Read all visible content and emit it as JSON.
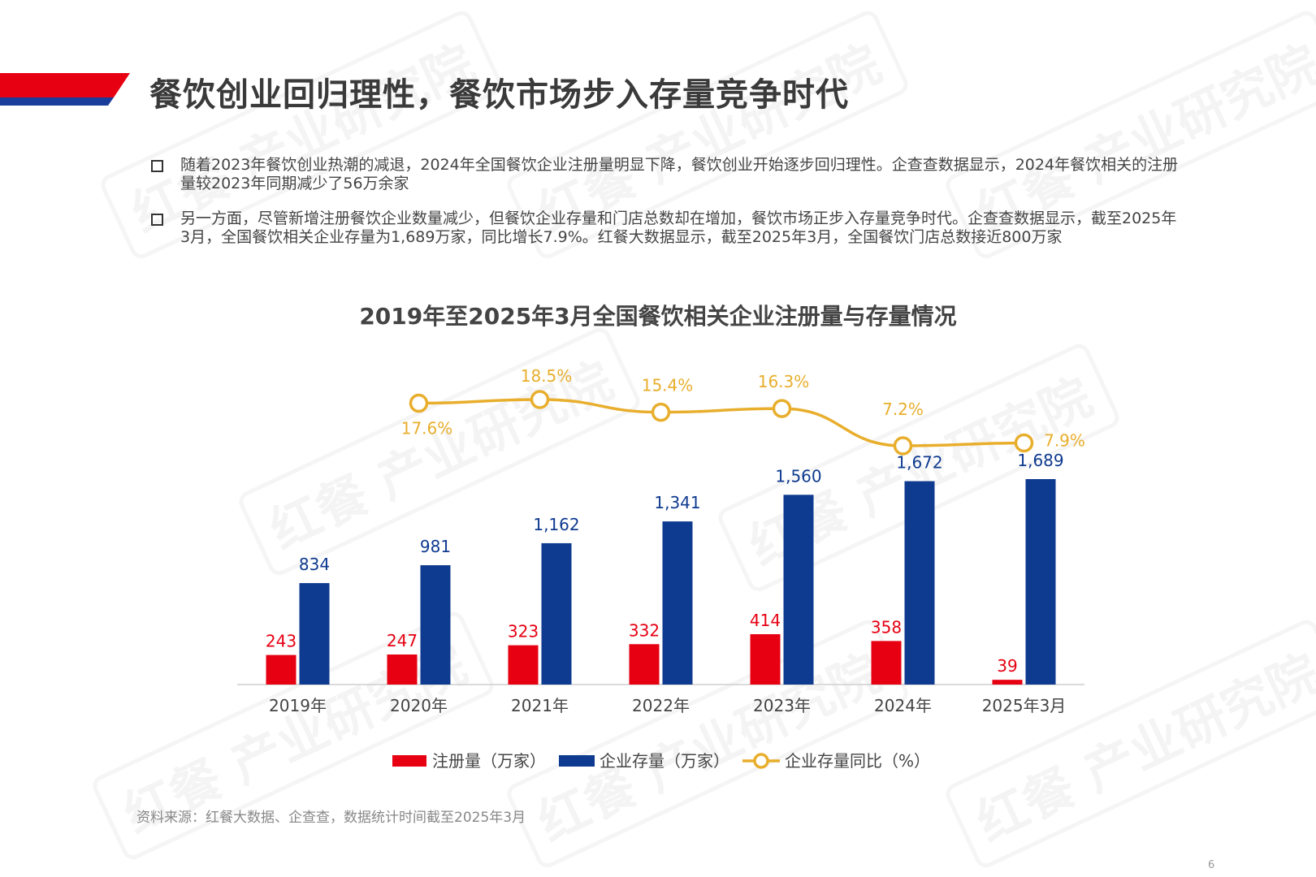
{
  "page": {
    "title": "餐饮创业回归理性，餐饮市场步入存量竞争时代",
    "bullets": [
      "随着2023年餐饮创业热潮的减退，2024年全国餐饮企业注册量明显下降，餐饮创业开始逐步回归理性。企查查数据显示，2024年餐饮相关的注册量较2023年同期减少了56万余家",
      "另一方面，尽管新增注册餐饮企业数量减少，但餐饮企业存量和门店总数却在增加，餐饮市场正步入存量竞争时代。企查查数据显示，截至2025年3月，全国餐饮相关企业存量为1,689万家，同比增长7.9%。红餐大数据显示，截至2025年3月，全国餐饮门店总数接近800万家"
    ],
    "source": "资料来源：红餐大数据、企查查，数据统计时间截至2025年3月",
    "page_number": "6",
    "watermark_text": "红餐 产业研究院",
    "colors": {
      "brand_red": "#E60012",
      "brand_blue": "#0E3A8F",
      "line_gold": "#E8AE2C"
    }
  },
  "chart_data": {
    "type": "bar",
    "title": "2019年至2025年3月全国餐饮相关企业注册量与存量情况",
    "categories": [
      "2019年",
      "2020年",
      "2021年",
      "2022年",
      "2023年",
      "2024年",
      "2025年3月"
    ],
    "series": [
      {
        "name": "注册量（万家）",
        "type": "bar",
        "color": "#E60012",
        "values": [
          243,
          247,
          323,
          332,
          414,
          358,
          39
        ],
        "labels": [
          "243",
          "247",
          "323",
          "332",
          "414",
          "358",
          "39"
        ]
      },
      {
        "name": "企业存量（万家）",
        "type": "bar",
        "color": "#0E3A8F",
        "values": [
          834,
          981,
          1162,
          1341,
          1560,
          1672,
          1689
        ],
        "labels": [
          "834",
          "981",
          "1,162",
          "1,341",
          "1,560",
          "1,672",
          "1,689"
        ]
      },
      {
        "name": "企业存量同比（%）",
        "type": "line",
        "color": "#E8AE2C",
        "x": [
          "2020年",
          "2021年",
          "2022年",
          "2023年",
          "2024年",
          "2025年3月"
        ],
        "values": [
          17.6,
          18.5,
          15.4,
          16.3,
          7.2,
          7.9
        ],
        "labels": [
          "17.6%",
          "18.5%",
          "15.4%",
          "16.3%",
          "7.2%",
          "7.9%"
        ]
      }
    ],
    "bar_axis_range": [
      0,
      1850
    ],
    "line_axis_range": [
      7.2,
      18.5
    ],
    "grid": false,
    "legend_position": "bottom-center"
  }
}
